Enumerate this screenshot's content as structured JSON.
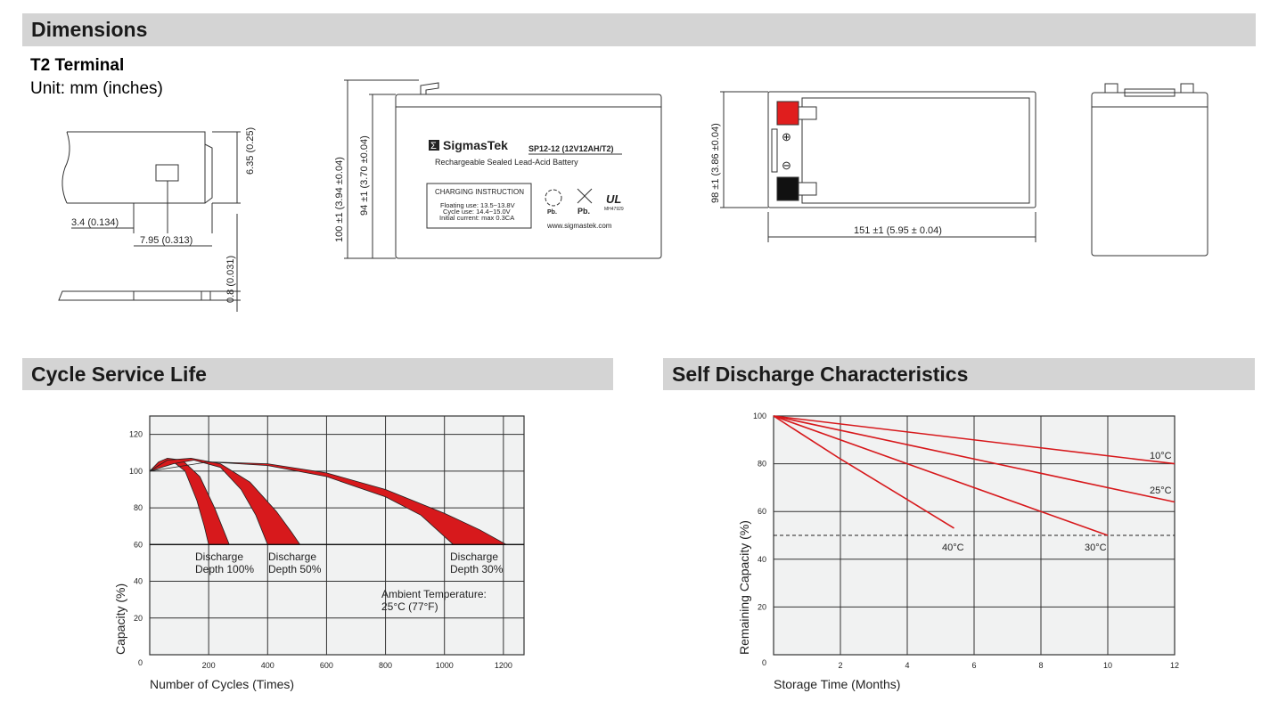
{
  "sections": {
    "dimensions": "Dimensions",
    "cycle": "Cycle Service Life",
    "self_discharge": "Self Discharge Characteristics"
  },
  "terminal": {
    "title": "T2 Terminal",
    "unit": "Unit: mm (inches)",
    "dim_a": "3.4 (0.134)",
    "dim_b": "7.95 (0.313)",
    "dim_c": "6.35 (0.25)",
    "dim_d": "0.8 (0.031)"
  },
  "battery": {
    "height_total": "100 ±1 (3.94 ±0.04)",
    "height_case": "94 ±1 (3.70 ±0.04)",
    "width": "98 ±1 (3.86 ±0.04)",
    "length": "151 ±1 (5.95 ± 0.04)",
    "brand": "SigmasTek",
    "brand_logo": "Σ",
    "model": "SP12-12 (12V12AH/T2)",
    "subtitle": "Rechargeable Sealed Lead-Acid Battery",
    "charging_title": "CHARGING INSTRUCTION",
    "charging_lines": [
      "Floating use: 13.5~13.8V",
      "Cycle use: 14.4~15.0V",
      "Initial current: max 0.3CA"
    ],
    "recycle_label": "Pb.",
    "bin_label": "Pb.",
    "ul_mark": "UL",
    "ul_number": "MH47929",
    "website": "www.sigmastek.com",
    "plus": "⊕",
    "minus": "⊖"
  },
  "colors": {
    "red": "#d7191c",
    "grid_bg": "#f1f2f2",
    "header_bg": "#d4d4d4"
  },
  "chart_data": [
    {
      "type": "area",
      "xlabel": "Number of Cycles (Times)",
      "ylabel": "Capacity (%)",
      "xlim": [
        0,
        1270
      ],
      "ylim": [
        0,
        130
      ],
      "xticks": [
        200,
        400,
        600,
        800,
        1000,
        1200
      ],
      "yticks": [
        0,
        20,
        40,
        60,
        80,
        100,
        120
      ],
      "grid": true,
      "annotations": [
        {
          "text": [
            "Discharge",
            "Depth 100%"
          ]
        },
        {
          "text": [
            "Discharge",
            "Depth 50%"
          ]
        },
        {
          "text": [
            "Discharge",
            "Depth 30%"
          ]
        },
        {
          "text": [
            "Ambient Temperature:",
            "25°C (77°F)"
          ]
        }
      ],
      "series": [
        {
          "name": "Discharge Depth 100%",
          "upper": [
            [
              0,
              100
            ],
            [
              30,
              105
            ],
            [
              60,
              107
            ],
            [
              110,
              106
            ],
            [
              170,
              97
            ],
            [
              220,
              80
            ],
            [
              250,
              68
            ],
            [
              270,
              60
            ]
          ],
          "lower": [
            [
              0,
              100
            ],
            [
              40,
              104
            ],
            [
              80,
              105
            ],
            [
              120,
              100
            ],
            [
              160,
              84
            ],
            [
              185,
              70
            ],
            [
              200,
              60
            ]
          ]
        },
        {
          "name": "Discharge Depth 50%",
          "upper": [
            [
              0,
              100
            ],
            [
              60,
              106
            ],
            [
              140,
              107
            ],
            [
              240,
              104
            ],
            [
              340,
              94
            ],
            [
              430,
              78
            ],
            [
              480,
              67
            ],
            [
              510,
              60
            ]
          ],
          "lower": [
            [
              0,
              100
            ],
            [
              80,
              104
            ],
            [
              150,
              106
            ],
            [
              240,
              102
            ],
            [
              310,
              90
            ],
            [
              360,
              76
            ],
            [
              400,
              60
            ]
          ]
        },
        {
          "name": "Discharge Depth 30%",
          "upper": [
            [
              0,
              100
            ],
            [
              200,
              105
            ],
            [
              400,
              104
            ],
            [
              600,
              99
            ],
            [
              800,
              90
            ],
            [
              1000,
              77
            ],
            [
              1120,
              68
            ],
            [
              1210,
              60
            ]
          ],
          "lower": [
            [
              0,
              100
            ],
            [
              200,
              105
            ],
            [
              400,
              103
            ],
            [
              600,
              97
            ],
            [
              800,
              86
            ],
            [
              920,
              76
            ],
            [
              1030,
              60
            ]
          ]
        }
      ]
    },
    {
      "type": "line",
      "xlabel": "Storage Time (Months)",
      "ylabel": "Remaining Capacity (%)",
      "xlim": [
        0,
        12
      ],
      "ylim": [
        0,
        100
      ],
      "xticks": [
        2,
        4,
        6,
        8,
        10,
        12
      ],
      "yticks": [
        0,
        20,
        40,
        60,
        80,
        100
      ],
      "grid": true,
      "reference_line": 50,
      "series": [
        {
          "name": "10°C",
          "x": [
            0,
            12
          ],
          "y": [
            100,
            80
          ]
        },
        {
          "name": "25°C",
          "x": [
            0,
            4,
            8,
            12
          ],
          "y": [
            100,
            88,
            76,
            64
          ]
        },
        {
          "name": "30°C",
          "x": [
            0,
            4,
            8,
            10
          ],
          "y": [
            100,
            80,
            60,
            50
          ]
        },
        {
          "name": "40°C",
          "x": [
            0,
            2,
            4,
            5.4
          ],
          "y": [
            100,
            82,
            65,
            53
          ]
        }
      ]
    }
  ]
}
